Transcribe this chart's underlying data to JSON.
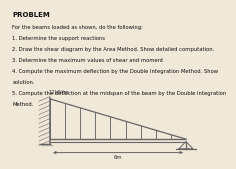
{
  "title": "PROBLEM",
  "problem_lines": [
    "For the beams loaded as shown, do the following:",
    "1. Determine the support reactions",
    "2. Draw the shear diagram by the Area Method. Show detailed computation.",
    "3. Determine the maximum values of shear and moment",
    "4. Compute the maximum deflection by the Double Integration Method. Show",
    "solution.",
    "5. Compute the deflection at the midspan of the beam by the Double Integration",
    "Method."
  ],
  "fig_bg": "#f0e8d8",
  "text_bg": "#f0e8d8",
  "diagram_bg": "#d8c8a8",
  "beam_color": "#666666",
  "text_color": "#111111",
  "load_label": "12kN/m",
  "span_label": "6m",
  "title_fontsize": 5.0,
  "body_fontsize": 3.8
}
